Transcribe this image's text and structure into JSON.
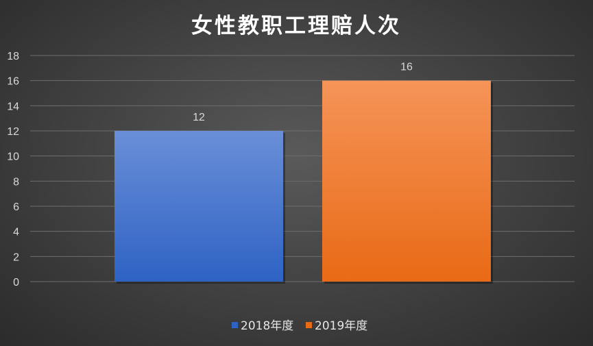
{
  "chart_data": {
    "type": "bar",
    "title": "女性教职工理赔人次",
    "categories": [
      "2018年度",
      "2019年度"
    ],
    "values": [
      12,
      16
    ],
    "series_colors": [
      {
        "top": "#6a8fd8",
        "bottom": "#2e62c4"
      },
      {
        "top": "#f59458",
        "bottom": "#e96a16"
      }
    ],
    "ylim": [
      0,
      18
    ],
    "ytick_step": 2,
    "grid": true,
    "legend_position": "bottom",
    "xlabel": "",
    "ylabel": ""
  }
}
